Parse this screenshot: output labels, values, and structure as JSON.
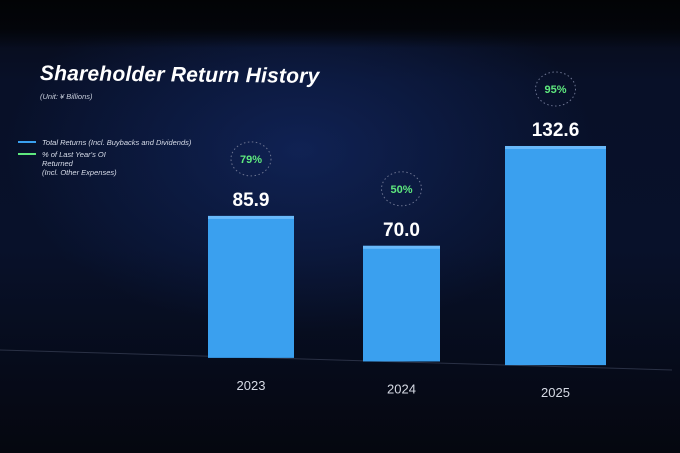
{
  "title": "Shareholder Return History",
  "unit": "(Unit: ¥ Billions)",
  "legend": {
    "total_label": "Total Returns (Incl. Buybacks and Dividends)",
    "pct_label_line1": "% of Last Year's OI",
    "pct_label_line2": "Returned",
    "pct_label_line3": "(Incl. Other Expenses)"
  },
  "colors": {
    "bar": "#3aa0ef",
    "pct_text": "#5ee87e",
    "value_text": "#ffffff",
    "axis_text": "#d6dae4"
  },
  "chart_data": {
    "type": "bar",
    "title": "Shareholder Return History",
    "categories": [
      "2023",
      "2024",
      "2025"
    ],
    "series": [
      {
        "name": "Total Returns (Incl. Buybacks and Dividends)",
        "values": [
          85.9,
          70.0,
          132.6
        ]
      },
      {
        "name": "% of Last Year's OI Returned (Incl. Other Expenses)",
        "values": [
          79,
          50,
          95
        ],
        "unit": "%"
      }
    ],
    "value_labels": [
      "85.9",
      "70.0",
      "132.6"
    ],
    "pct_labels": [
      "79%",
      "50%",
      "95%"
    ],
    "ylim": [
      0,
      132.6
    ],
    "grid": false,
    "legend_position": "top-left"
  }
}
